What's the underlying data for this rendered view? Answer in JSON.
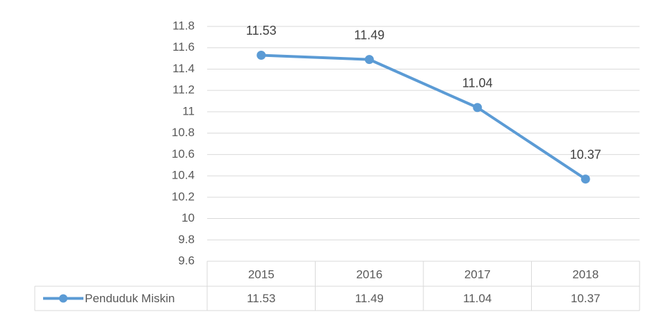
{
  "chart_data": {
    "type": "line",
    "categories": [
      "2015",
      "2016",
      "2017",
      "2018"
    ],
    "series": [
      {
        "name": "Penduduk Miskin",
        "color": "#5b9bd5",
        "values": [
          11.53,
          11.49,
          11.04,
          10.37
        ]
      }
    ],
    "ylim": [
      9.6,
      11.8
    ],
    "yticks": [
      9.6,
      9.8,
      10,
      10.2,
      10.4,
      10.6,
      10.8,
      11,
      11.2,
      11.4,
      11.6,
      11.8
    ],
    "grid": true,
    "data_table": true
  }
}
